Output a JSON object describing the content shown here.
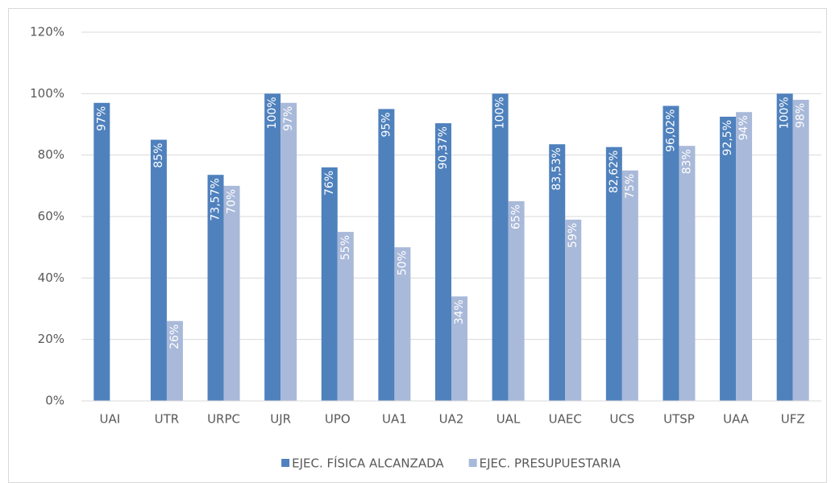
{
  "chart_data": {
    "type": "bar",
    "categories": [
      "UAI",
      "UTR",
      "URPC",
      "UJR",
      "UPO",
      "UA1",
      "UA2",
      "UAL",
      "UAEC",
      "UCS",
      "UTSP",
      "UAA",
      "UFZ"
    ],
    "series": [
      {
        "name": "EJEC. FÍSICA ALCANZADA",
        "color": "#4f81bd",
        "values": [
          97,
          85,
          73.57,
          100,
          76,
          95,
          90.37,
          100,
          83.53,
          82.62,
          96.02,
          92.5,
          100
        ],
        "value_labels": [
          "97%",
          "85%",
          "73,57%",
          "100%",
          "76%",
          "95%",
          "90,37%",
          "100%",
          "83,53%",
          "82,62%",
          "96,02%",
          "92,5%",
          "100%"
        ]
      },
      {
        "name": "EJEC. PRESUPUESTARIA",
        "color": "#a9b9d9",
        "values": [
          null,
          26,
          70,
          97,
          55,
          50,
          34,
          65,
          59,
          75,
          83,
          94,
          98
        ],
        "value_labels": [
          null,
          "26%",
          "70%",
          "97%",
          "55%",
          "50%",
          "34%",
          "65%",
          "59%",
          "75%",
          "83%",
          "94%",
          "98%"
        ]
      }
    ],
    "ylim": [
      0,
      120
    ],
    "yticks": [
      {
        "value": 0,
        "label": "0%"
      },
      {
        "value": 20,
        "label": "20%"
      },
      {
        "value": 40,
        "label": "40%"
      },
      {
        "value": 60,
        "label": "60%"
      },
      {
        "value": 80,
        "label": "80%"
      },
      {
        "value": 100,
        "label": "100%"
      },
      {
        "value": 120,
        "label": "120%"
      }
    ],
    "grid": true,
    "legend": "bottom"
  }
}
